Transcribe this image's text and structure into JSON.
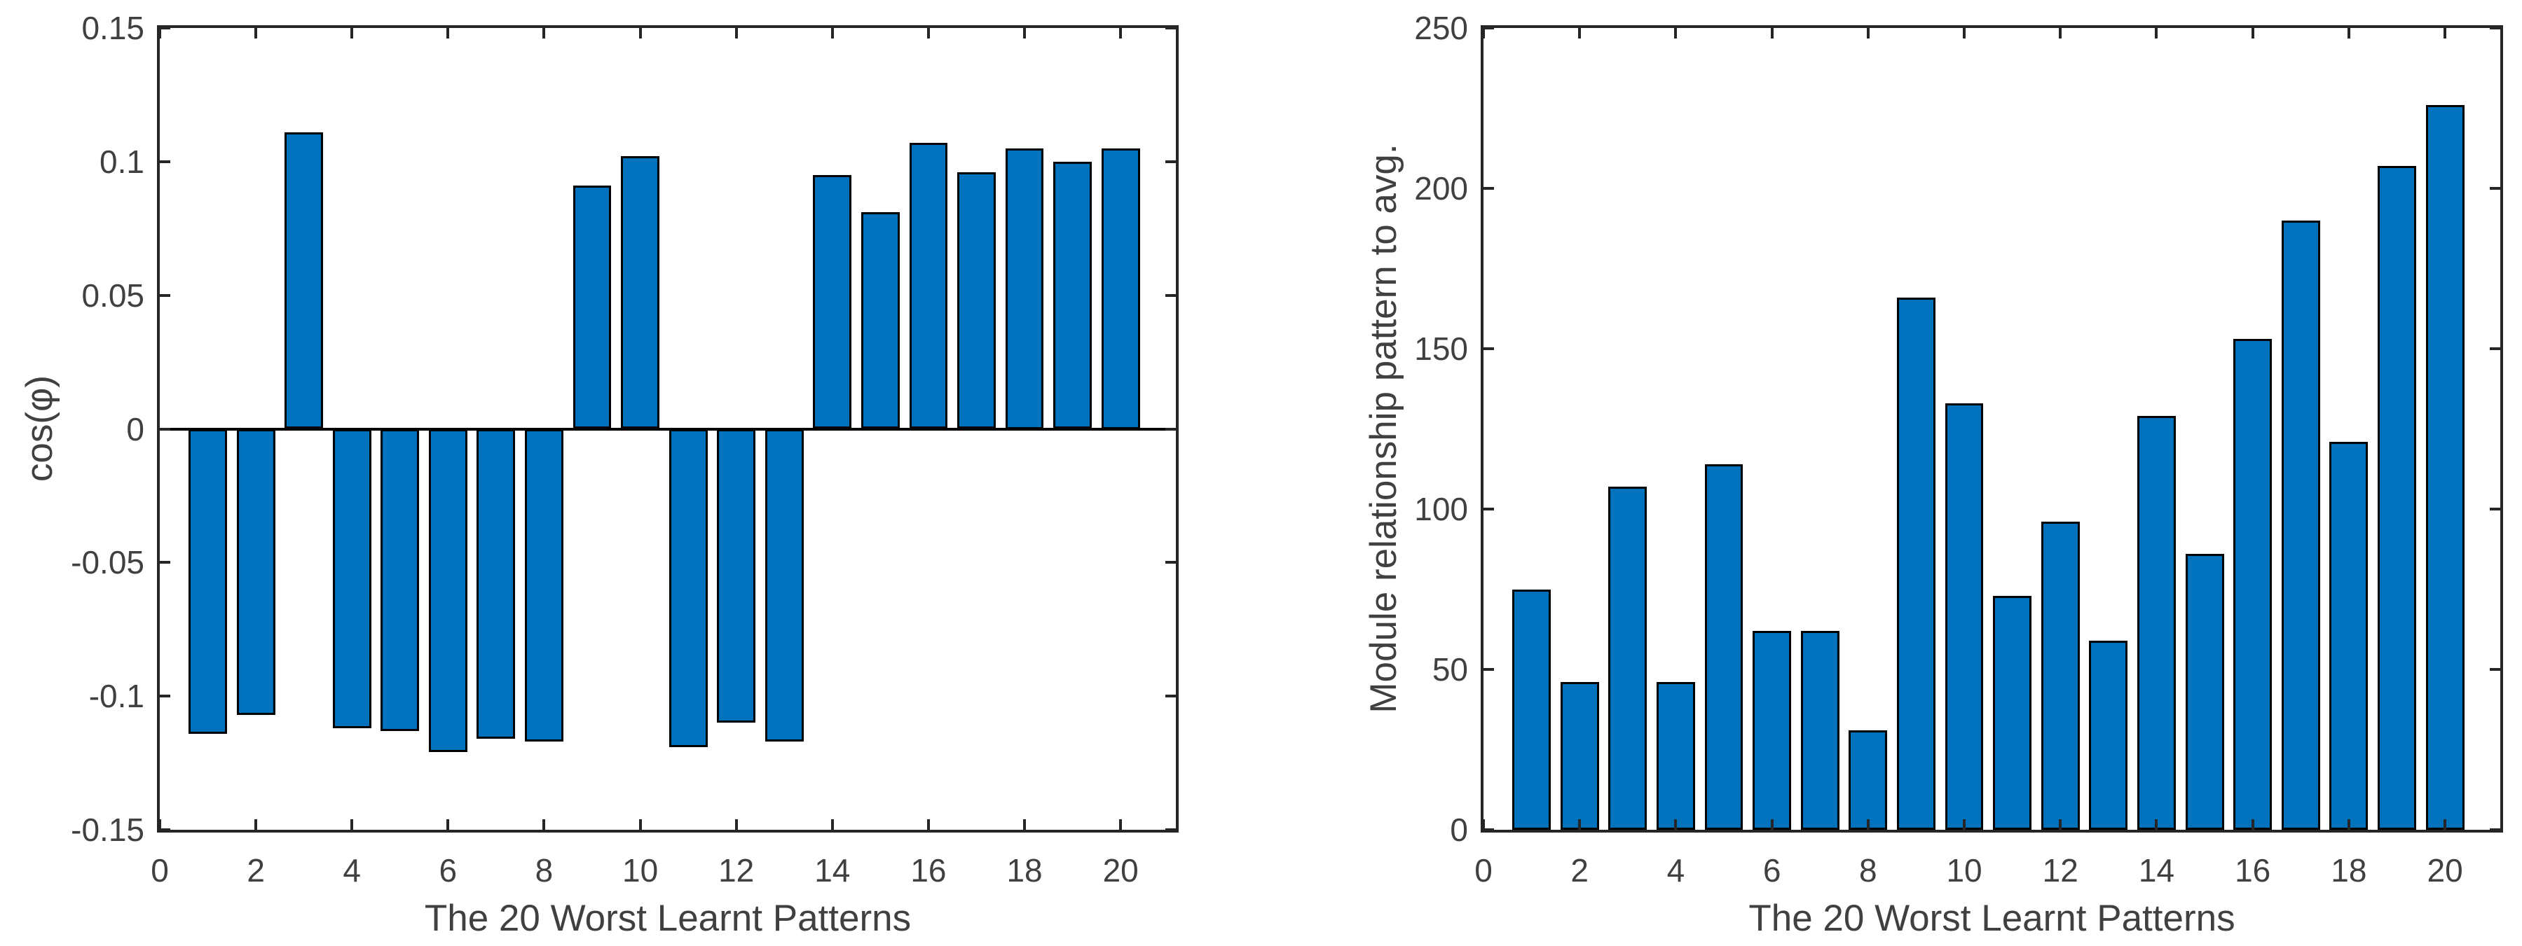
{
  "figure": {
    "background": "#ffffff",
    "axis_color": "#262626",
    "text_color": "#404040"
  },
  "chart_data": [
    {
      "type": "bar",
      "title": "",
      "xlabel": "The 20 Worst Learnt Patterns",
      "ylabel": "cos(φ)",
      "categories": [
        1,
        2,
        3,
        4,
        5,
        6,
        7,
        8,
        9,
        10,
        11,
        12,
        13,
        14,
        15,
        16,
        17,
        18,
        19,
        20
      ],
      "values": [
        -0.114,
        -0.107,
        0.111,
        -0.112,
        -0.113,
        -0.121,
        -0.116,
        -0.117,
        0.091,
        0.102,
        -0.119,
        -0.11,
        -0.117,
        0.095,
        0.081,
        0.107,
        0.096,
        0.105,
        0.1,
        0.105
      ],
      "xlim": [
        0,
        21.15
      ],
      "ylim": [
        -0.15,
        0.15
      ],
      "xticks": [
        0,
        2,
        4,
        6,
        8,
        10,
        12,
        14,
        16,
        18,
        20
      ],
      "xtick_labels": [
        "0",
        "2",
        "4",
        "6",
        "8",
        "10",
        "12",
        "14",
        "16",
        "18",
        "20"
      ],
      "yticks": [
        -0.15,
        -0.1,
        -0.05,
        0,
        0.05,
        0.1,
        0.15
      ],
      "ytick_labels": [
        "-0.15",
        "-0.1",
        "-0.05",
        "0",
        "0.05",
        "0.1",
        "0.15"
      ],
      "bar_width_units": 0.8,
      "bar_color": "#0072BD",
      "bar_edge_color": "#000000",
      "zero_baseline": true,
      "grid": false,
      "legend": null
    },
    {
      "type": "bar",
      "title": "",
      "xlabel": "The 20 Worst Learnt Patterns",
      "ylabel": "Module relationship pattern to avg.",
      "categories": [
        1,
        2,
        3,
        4,
        5,
        6,
        7,
        8,
        9,
        10,
        11,
        12,
        13,
        14,
        15,
        16,
        17,
        18,
        19,
        20
      ],
      "values": [
        75,
        46,
        107,
        46,
        114,
        62,
        62,
        31,
        166,
        133,
        73,
        96,
        59,
        129,
        86,
        153,
        190,
        121,
        207,
        226
      ],
      "xlim": [
        0,
        21.15
      ],
      "ylim": [
        0,
        250
      ],
      "xticks": [
        0,
        2,
        4,
        6,
        8,
        10,
        12,
        14,
        16,
        18,
        20
      ],
      "xtick_labels": [
        "0",
        "2",
        "4",
        "6",
        "8",
        "10",
        "12",
        "14",
        "16",
        "18",
        "20"
      ],
      "yticks": [
        0,
        50,
        100,
        150,
        200,
        250
      ],
      "ytick_labels": [
        "0",
        "50",
        "100",
        "150",
        "200",
        "250"
      ],
      "bar_width_units": 0.8,
      "bar_color": "#0072BD",
      "bar_edge_color": "#000000",
      "zero_baseline": false,
      "grid": false,
      "legend": null
    }
  ]
}
